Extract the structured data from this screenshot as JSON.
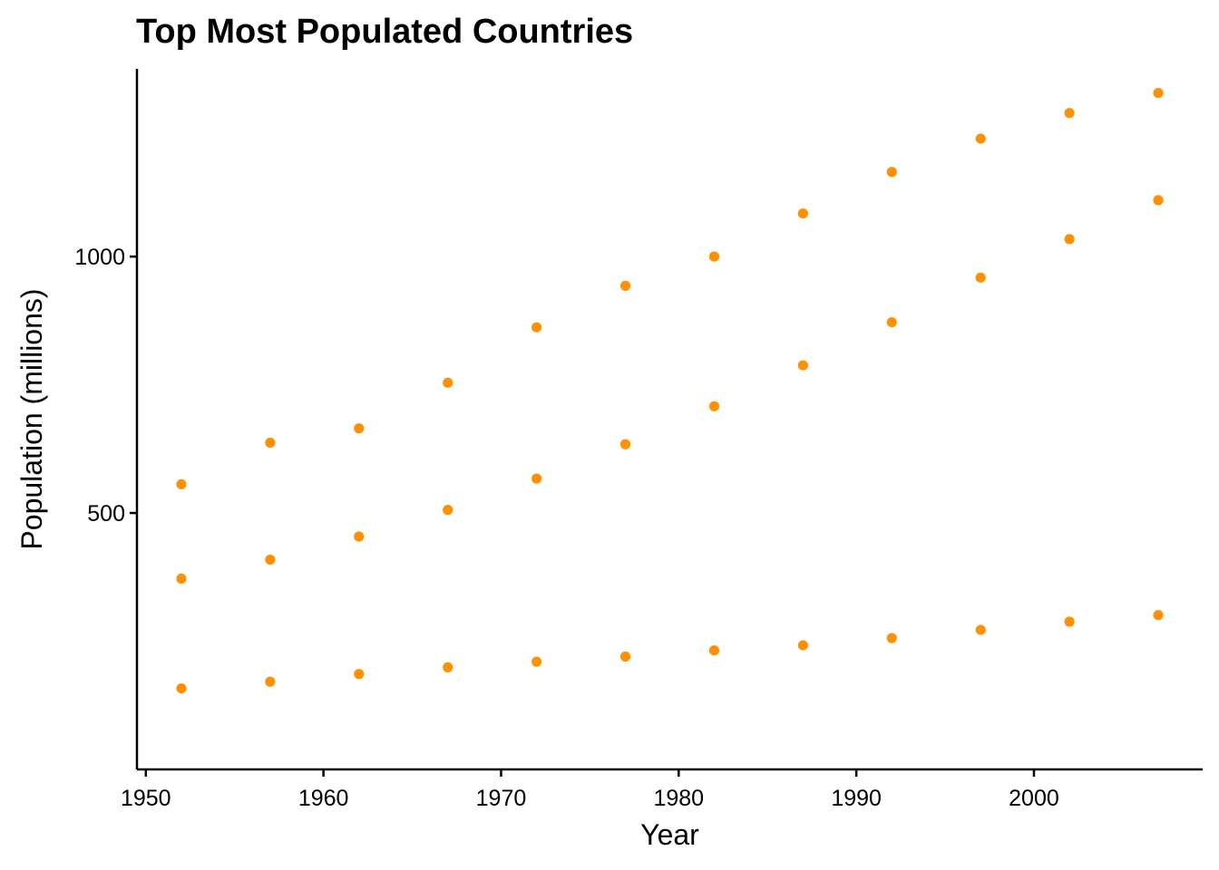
{
  "chart_data": {
    "type": "scatter",
    "title": "Top Most Populated Countries",
    "xlabel": "Year",
    "ylabel": "Population (millions)",
    "xlim": [
      1949.5,
      2009.5
    ],
    "ylim": [
      0,
      1366
    ],
    "x_ticks": [
      1950,
      1960,
      1970,
      1980,
      1990,
      2000
    ],
    "y_ticks": [
      500,
      1000
    ],
    "grid": false,
    "legend": "none",
    "point_color": "#FF9100",
    "series": [
      {
        "x": [
          1952,
          1957,
          1962,
          1967,
          1972,
          1977,
          1982,
          1987,
          1992,
          1997,
          2002,
          2007
        ],
        "y": [
          556,
          637,
          665,
          754,
          862,
          943,
          1000,
          1084,
          1165,
          1230,
          1280,
          1319
        ]
      },
      {
        "x": [
          1952,
          1957,
          1962,
          1967,
          1972,
          1977,
          1982,
          1987,
          1992,
          1997,
          2002,
          2007
        ],
        "y": [
          372,
          409,
          454,
          506,
          567,
          634,
          708,
          788,
          872,
          959,
          1034,
          1110
        ]
      },
      {
        "x": [
          1952,
          1957,
          1962,
          1967,
          1972,
          1977,
          1982,
          1987,
          1992,
          1997,
          2002,
          2007
        ],
        "y": [
          158,
          171,
          186,
          199,
          210,
          220,
          232,
          242,
          256,
          272,
          288,
          301
        ]
      }
    ]
  }
}
